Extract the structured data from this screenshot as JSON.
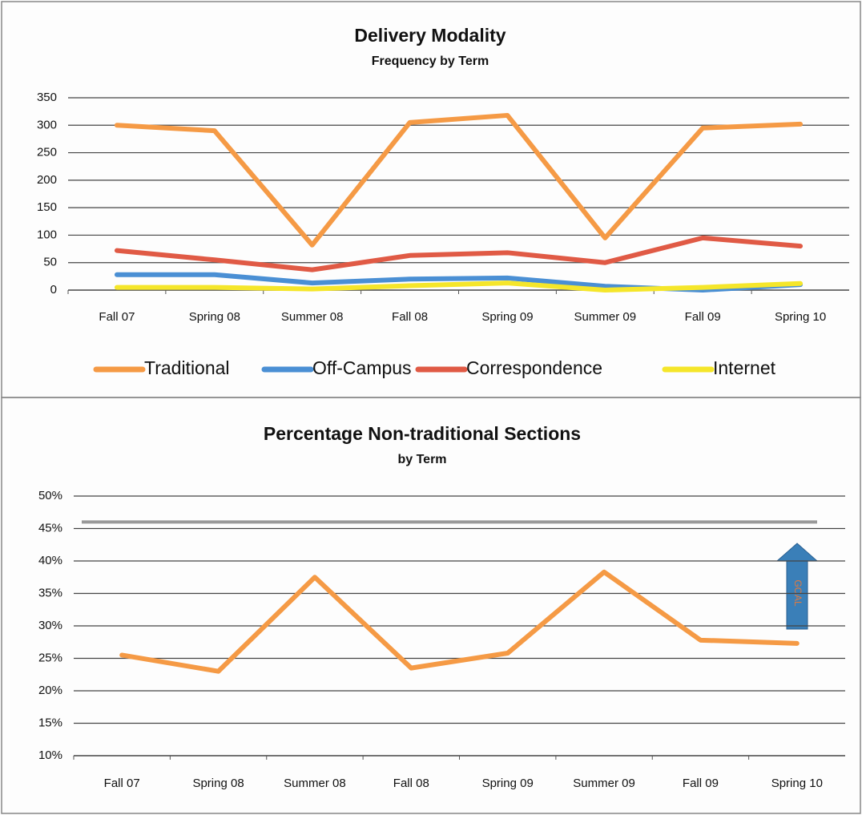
{
  "chart_data": [
    {
      "type": "line",
      "title": "Delivery Modality",
      "subtitle": "Frequency by Term",
      "categories": [
        "Fall 07",
        "Spring 08",
        "Summer 08",
        "Fall 08",
        "Spring 09",
        "Summer 09",
        "Fall 09",
        "Spring 10"
      ],
      "series": [
        {
          "name": "Traditional",
          "color": "#f59a45",
          "values": [
            300,
            290,
            82,
            305,
            318,
            95,
            295,
            302
          ]
        },
        {
          "name": "Off-Campus",
          "color": "#4a8fd4",
          "values": [
            28,
            28,
            13,
            20,
            22,
            7,
            0,
            10
          ]
        },
        {
          "name": "Correspondence",
          "color": "#e05a45",
          "values": [
            72,
            55,
            37,
            63,
            68,
            50,
            95,
            80
          ]
        },
        {
          "name": "Internet",
          "color": "#f5e62a",
          "values": [
            5,
            5,
            2,
            8,
            13,
            0,
            5,
            12
          ]
        }
      ],
      "ylim": [
        0,
        350
      ],
      "yticks": [
        0,
        50,
        100,
        150,
        200,
        250,
        300,
        350
      ],
      "grid": true,
      "legend": "bottom"
    },
    {
      "type": "line",
      "title": "Percentage Non-traditional Sections",
      "subtitle": "by Term",
      "categories": [
        "Fall 07",
        "Spring 08",
        "Summer 08",
        "Fall 08",
        "Spring 09",
        "Summer 09",
        "Fall 09",
        "Spring 10"
      ],
      "series": [
        {
          "color": "#f59a45",
          "values": [
            25.5,
            23,
            37.5,
            23.5,
            25.8,
            38.3,
            27.8,
            27.3
          ]
        }
      ],
      "ylim": [
        10,
        50
      ],
      "yticks": [
        {
          "value": 10,
          "label": "10%"
        },
        {
          "value": 15,
          "label": "15%"
        },
        {
          "value": 20,
          "label": "20%"
        },
        {
          "value": 25,
          "label": "25%"
        },
        {
          "value": 30,
          "label": "30%"
        },
        {
          "value": 35,
          "label": "35%"
        },
        {
          "value": 40,
          "label": "40%"
        },
        {
          "value": 45,
          "label": "45%"
        },
        {
          "value": 50,
          "label": "50%"
        }
      ],
      "grid": true,
      "reference_line": 46,
      "annotation": "GOAL"
    }
  ]
}
